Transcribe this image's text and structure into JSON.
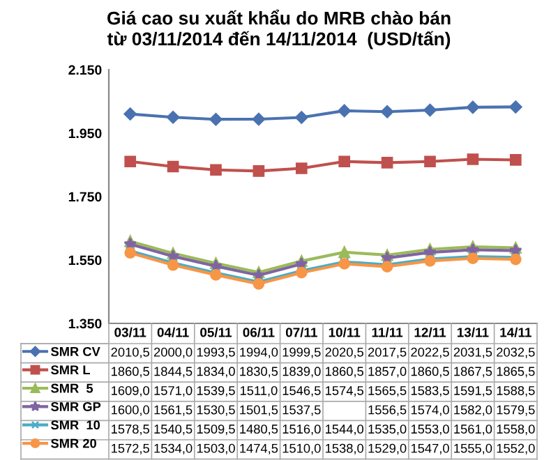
{
  "chart_data": {
    "type": "line",
    "title": "Giá cao su xuất khẩu do MRB chào bán\ntừ 03/11/2014 đến 14/11/2014  (USD/tấn)",
    "categories": [
      "03/11",
      "04/11",
      "05/11",
      "06/11",
      "07/11",
      "10/11",
      "11/11",
      "12/11",
      "13/11",
      "14/11"
    ],
    "ylim": [
      1350,
      2150
    ],
    "yticks": [
      {
        "value": 1350,
        "label": "1.350"
      },
      {
        "value": 1550,
        "label": "1.550"
      },
      {
        "value": 1750,
        "label": "1.750"
      },
      {
        "value": 1950,
        "label": "1.950"
      },
      {
        "value": 2150,
        "label": "2.150"
      }
    ],
    "grid": false,
    "legend": "bottom",
    "series": [
      {
        "name": "SMR CV",
        "color": "#4a72b0",
        "marker": "diamond",
        "values": [
          2010.5,
          2000.0,
          1993.5,
          1994.0,
          1999.5,
          2020.5,
          2017.5,
          2022.5,
          2031.5,
          2032.5
        ],
        "value_labels": [
          "2010,5",
          "2000,0",
          "1993,5",
          "1994,0",
          "1999,5",
          "2020,5",
          "2017,5",
          "2022,5",
          "2031,5",
          "2032,5"
        ]
      },
      {
        "name": "SMR L",
        "color": "#c0504d",
        "marker": "square",
        "values": [
          1860.5,
          1844.5,
          1834.0,
          1830.5,
          1839.0,
          1860.5,
          1857.0,
          1860.5,
          1867.5,
          1865.5
        ],
        "value_labels": [
          "1860,5",
          "1844,5",
          "1834,0",
          "1830,5",
          "1839,0",
          "1860,5",
          "1857,0",
          "1860,5",
          "1867,5",
          "1865,5"
        ]
      },
      {
        "name": "SMR  5",
        "color": "#9bbb59",
        "marker": "triangle",
        "values": [
          1609.0,
          1571.0,
          1539.5,
          1511.0,
          1546.5,
          1574.5,
          1565.5,
          1583.5,
          1591.5,
          1588.5
        ],
        "value_labels": [
          "1609,0",
          "1571,0",
          "1539,5",
          "1511,0",
          "1546,5",
          "1574,5",
          "1565,5",
          "1583,5",
          "1591,5",
          "1588,5"
        ]
      },
      {
        "name": "SMR GP",
        "color": "#8064a2",
        "marker": "star",
        "values": [
          1600.0,
          1561.5,
          1530.5,
          1501.5,
          1537.5,
          null,
          1556.5,
          1574.0,
          1582.0,
          1579.5
        ],
        "value_labels": [
          "1600,0",
          "1561,5",
          "1530,5",
          "1501,5",
          "1537,5",
          null,
          "1556,5",
          "1574,0",
          "1582,0",
          "1579,5"
        ]
      },
      {
        "name": "SMR  10",
        "color": "#4bacc6",
        "marker": "cross",
        "values": [
          1578.5,
          1540.5,
          1509.5,
          1480.5,
          1516.0,
          1544.0,
          1535.0,
          1553.0,
          1561.0,
          1558.0
        ],
        "value_labels": [
          "1578,5",
          "1540,5",
          "1509,5",
          "1480,5",
          "1516,0",
          "1544,0",
          "1535,0",
          "1553,0",
          "1561,0",
          "1558,0"
        ]
      },
      {
        "name": "SMR 20",
        "color": "#f79646",
        "marker": "circle",
        "values": [
          1572.5,
          1534.0,
          1503.0,
          1474.5,
          1510.0,
          1538.0,
          1529.0,
          1547.0,
          1555.0,
          1552.0
        ],
        "value_labels": [
          "1572,5",
          "1534,0",
          "1503,0",
          "1474,5",
          "1510,0",
          "1538,0",
          "1529,0",
          "1547,0",
          "1555,0",
          "1552,0"
        ]
      }
    ]
  }
}
